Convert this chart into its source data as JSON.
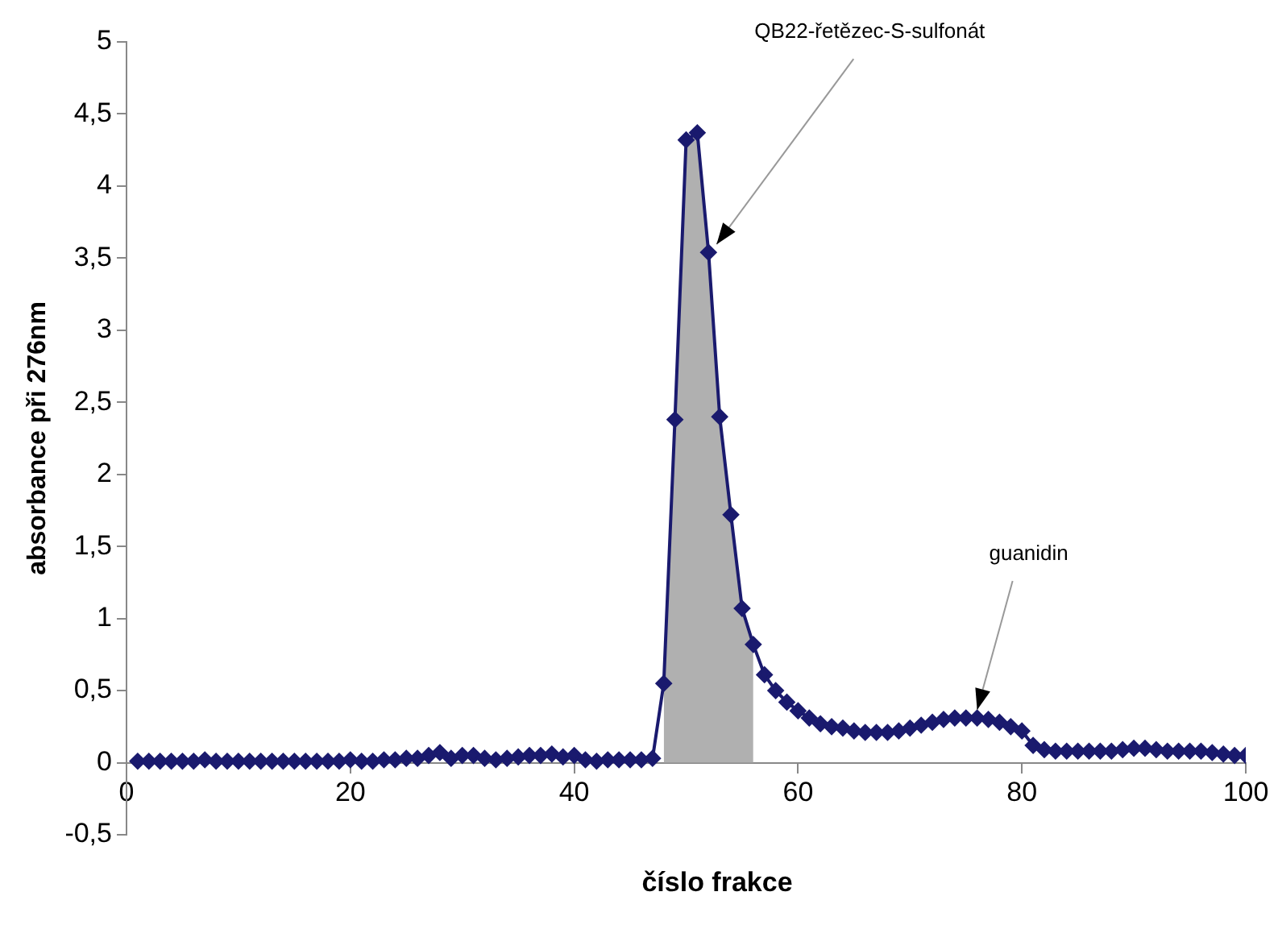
{
  "chart_data": {
    "type": "line",
    "xlabel": "číslo frakce",
    "ylabel": "absorbance při 276nm",
    "x": [
      1,
      2,
      3,
      4,
      5,
      6,
      7,
      8,
      9,
      10,
      11,
      12,
      13,
      14,
      15,
      16,
      17,
      18,
      19,
      20,
      21,
      22,
      23,
      24,
      25,
      26,
      27,
      28,
      29,
      30,
      31,
      32,
      33,
      34,
      35,
      36,
      37,
      38,
      39,
      40,
      41,
      42,
      43,
      44,
      45,
      46,
      47,
      48,
      49,
      50,
      51,
      52,
      53,
      54,
      55,
      56,
      57,
      58,
      59,
      60,
      61,
      62,
      63,
      64,
      65,
      66,
      67,
      68,
      69,
      70,
      71,
      72,
      73,
      74,
      75,
      76,
      77,
      78,
      79,
      80,
      81,
      82,
      83,
      84,
      85,
      86,
      87,
      88,
      89,
      90,
      91,
      92,
      93,
      94,
      95,
      96,
      97,
      98,
      99,
      100
    ],
    "series": [
      {
        "color": "#1a1a6e",
        "marker": "diamond",
        "values": [
          0.01,
          0.01,
          0.01,
          0.01,
          0.01,
          0.01,
          0.02,
          0.01,
          0.01,
          0.01,
          0.01,
          0.01,
          0.01,
          0.01,
          0.01,
          0.01,
          0.01,
          0.01,
          0.01,
          0.02,
          0.01,
          0.01,
          0.02,
          0.02,
          0.03,
          0.03,
          0.05,
          0.07,
          0.03,
          0.05,
          0.05,
          0.03,
          0.02,
          0.03,
          0.04,
          0.05,
          0.05,
          0.06,
          0.04,
          0.05,
          0.02,
          0.01,
          0.02,
          0.02,
          0.02,
          0.02,
          0.03,
          0.55,
          2.38,
          4.32,
          4.37,
          3.54,
          2.4,
          1.72,
          1.07,
          0.82,
          0.61,
          0.5,
          0.42,
          0.36,
          0.31,
          0.27,
          0.25,
          0.24,
          0.22,
          0.21,
          0.21,
          0.21,
          0.22,
          0.24,
          0.26,
          0.28,
          0.3,
          0.31,
          0.31,
          0.31,
          0.3,
          0.28,
          0.25,
          0.22,
          0.12,
          0.09,
          0.08,
          0.08,
          0.08,
          0.08,
          0.08,
          0.08,
          0.09,
          0.1,
          0.1,
          0.09,
          0.08,
          0.08,
          0.08,
          0.08,
          0.07,
          0.06,
          0.05,
          0.05
        ]
      },
      {
        "type": "area",
        "marker": "none",
        "color": "#b0b0b0",
        "x": [
          48,
          49,
          50,
          51,
          52,
          53,
          54,
          55,
          56
        ],
        "values": [
          0.55,
          2.38,
          4.32,
          4.37,
          3.54,
          2.4,
          1.72,
          1.07,
          0.82
        ]
      }
    ],
    "xlim": [
      0,
      100
    ],
    "xticks": [
      0,
      20,
      40,
      60,
      80,
      100
    ],
    "ylim": [
      -0.5,
      5
    ],
    "yticks": [
      {
        "value": -0.5,
        "label": "-0,5"
      },
      0,
      {
        "value": 0.5,
        "label": "0,5"
      },
      1,
      {
        "value": 1.5,
        "label": "1,5"
      },
      2,
      {
        "value": 2.5,
        "label": "2,5"
      },
      3,
      {
        "value": 3.5,
        "label": "3,5"
      },
      4,
      {
        "value": 4.5,
        "label": "4,5"
      },
      5
    ],
    "grid": false,
    "legend": false,
    "annotations": [
      {
        "text": "QB22-řetězec-S-sulfonát",
        "x": 52,
        "y": 3.54
      },
      {
        "text": "guanidin",
        "x": 76,
        "y": 0.31
      }
    ]
  }
}
